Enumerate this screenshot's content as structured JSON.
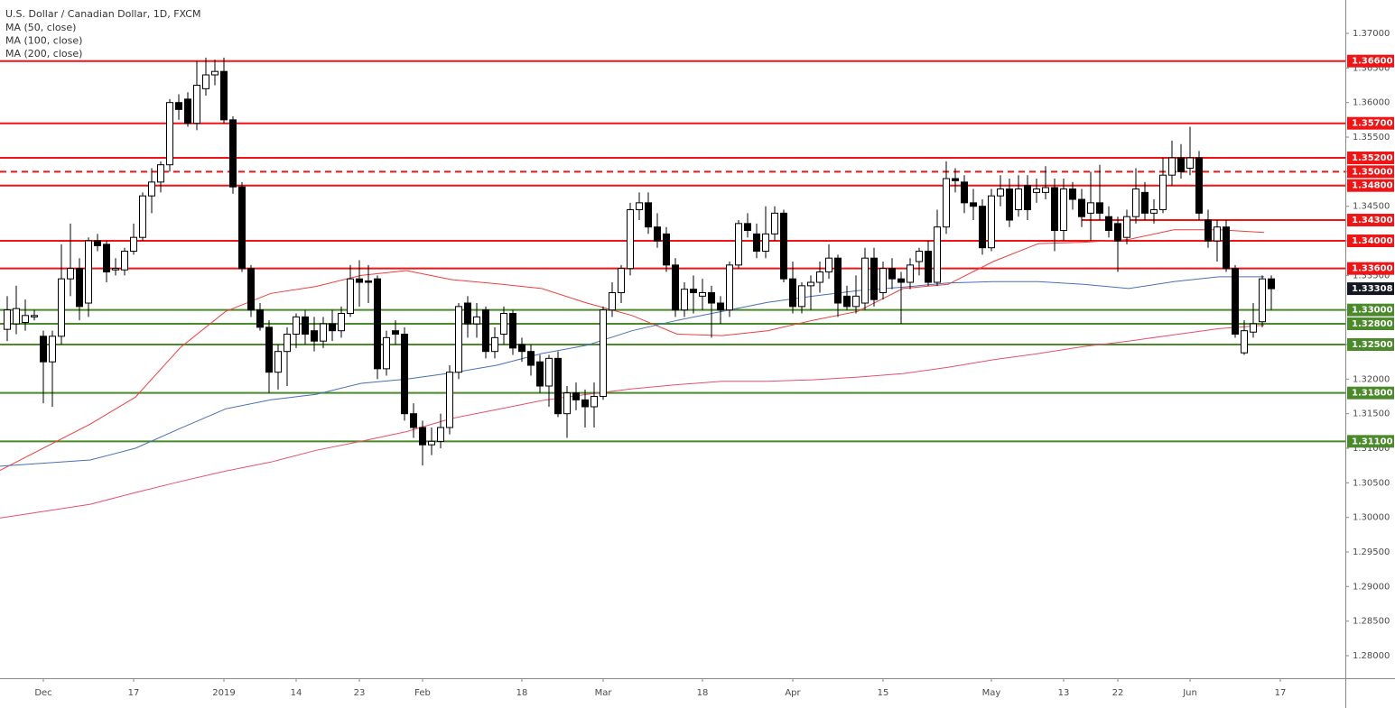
{
  "chart_data": {
    "type": "candlestick",
    "title": "U.S. Dollar / Canadian Dollar, 1D, FXCM",
    "up_color": "#ffffff",
    "down_color": "#000000",
    "xlim": [
      -4.8,
      144.2
    ],
    "ylim": [
      1.27674,
      1.37483
    ],
    "xticks": [
      {
        "value": 0,
        "label": "Dec"
      },
      {
        "value": 10,
        "label": "17"
      },
      {
        "value": 20,
        "label": "2019"
      },
      {
        "value": 28,
        "label": "14"
      },
      {
        "value": 35,
        "label": "23"
      },
      {
        "value": 42,
        "label": "Feb"
      },
      {
        "value": 53,
        "label": "18"
      },
      {
        "value": 62,
        "label": "Mar"
      },
      {
        "value": 73,
        "label": "18"
      },
      {
        "value": 83,
        "label": "Apr"
      },
      {
        "value": 93,
        "label": "15"
      },
      {
        "value": 105,
        "label": "May"
      },
      {
        "value": 113,
        "label": "13"
      },
      {
        "value": 119,
        "label": "22"
      },
      {
        "value": 127,
        "label": "Jun"
      },
      {
        "value": 137,
        "label": "17"
      }
    ],
    "yticks": [
      {
        "value": 1.28,
        "label": "1.28000"
      },
      {
        "value": 1.285,
        "label": "1.28500"
      },
      {
        "value": 1.29,
        "label": "1.29000"
      },
      {
        "value": 1.295,
        "label": "1.29500"
      },
      {
        "value": 1.3,
        "label": "1.30000"
      },
      {
        "value": 1.305,
        "label": "1.30500"
      },
      {
        "value": 1.31,
        "label": "1.31000"
      },
      {
        "value": 1.315,
        "label": "1.31500"
      },
      {
        "value": 1.32,
        "label": "1.32000"
      },
      {
        "value": 1.325,
        "label": "1.32500"
      },
      {
        "value": 1.33,
        "label": "1.33000"
      },
      {
        "value": 1.335,
        "label": "1.33500"
      },
      {
        "value": 1.34,
        "label": "1.34000"
      },
      {
        "value": 1.345,
        "label": "1.34500"
      },
      {
        "value": 1.35,
        "label": "1.35000"
      },
      {
        "value": 1.355,
        "label": "1.35500"
      },
      {
        "value": 1.36,
        "label": "1.36000"
      },
      {
        "value": 1.365,
        "label": "1.36500"
      },
      {
        "value": 1.37,
        "label": "1.37000"
      }
    ],
    "candles": {
      "x": [
        -4,
        -3,
        -2,
        -1,
        0,
        1,
        2,
        3,
        4,
        5,
        6,
        7,
        8,
        9,
        10,
        11,
        12,
        13,
        14,
        15,
        16,
        17,
        18,
        19,
        20,
        21,
        22,
        23,
        24,
        25,
        26,
        27,
        28,
        29,
        30,
        31,
        32,
        33,
        34,
        35,
        36,
        37,
        38,
        39,
        40,
        41,
        42,
        43,
        44,
        45,
        46,
        47,
        48,
        49,
        50,
        51,
        52,
        53,
        54,
        55,
        56,
        57,
        58,
        59,
        60,
        61,
        62,
        63,
        64,
        65,
        66,
        67,
        68,
        69,
        70,
        71,
        72,
        73,
        74,
        75,
        76,
        77,
        78,
        79,
        80,
        81,
        82,
        83,
        84,
        85,
        86,
        87,
        88,
        89,
        90,
        91,
        92,
        93,
        94,
        95,
        96,
        97,
        98,
        99,
        100,
        101,
        102,
        103,
        104,
        105,
        106,
        107,
        108,
        109,
        110,
        111,
        112,
        113,
        114,
        115,
        116,
        117,
        118,
        119,
        120,
        121,
        122,
        123,
        124,
        125,
        126,
        127,
        128,
        129,
        130,
        131,
        132,
        133,
        134,
        135,
        136
      ],
      "open": [
        1.3272,
        1.328,
        1.3282,
        1.329,
        1.3262,
        1.3225,
        1.3262,
        1.3345,
        1.336,
        1.331,
        1.34,
        1.3395,
        1.3358,
        1.3358,
        1.3385,
        1.3405,
        1.3465,
        1.3485,
        1.351,
        1.36,
        1.3605,
        1.357,
        1.362,
        1.364,
        1.3645,
        1.3575,
        1.3478,
        1.336,
        1.33,
        1.3275,
        1.321,
        1.324,
        1.3265,
        1.329,
        1.327,
        1.3255,
        1.328,
        1.327,
        1.3295,
        1.3345,
        1.3342,
        1.3345,
        1.3215,
        1.327,
        1.3265,
        1.315,
        1.313,
        1.3105,
        1.311,
        1.313,
        1.321,
        1.331,
        1.328,
        1.33,
        1.324,
        1.3265,
        1.3295,
        1.325,
        1.324,
        1.3225,
        1.319,
        1.323,
        1.315,
        1.318,
        1.317,
        1.316,
        1.3175,
        1.33,
        1.3325,
        1.336,
        1.3445,
        1.3455,
        1.342,
        1.341,
        1.3365,
        1.33,
        1.333,
        1.332,
        1.3325,
        1.331,
        1.33,
        1.3365,
        1.3425,
        1.341,
        1.3385,
        1.341,
        1.344,
        1.3345,
        1.3305,
        1.3335,
        1.334,
        1.3355,
        1.3375,
        1.332,
        1.3305,
        1.331,
        1.3375,
        1.3325,
        1.336,
        1.3345,
        1.334,
        1.337,
        1.3385,
        1.334,
        1.342,
        1.349,
        1.3485,
        1.3455,
        1.345,
        1.339,
        1.3465,
        1.3475,
        1.3445,
        1.348,
        1.347,
        1.347,
        1.3477,
        1.3415,
        1.3475,
        1.346,
        1.344,
        1.3455,
        1.3435,
        1.3425,
        1.3405,
        1.3435,
        1.347,
        1.344,
        1.3445,
        1.3495,
        1.352,
        1.3505,
        1.352,
        1.343,
        1.34,
        1.342,
        1.336,
        1.3238,
        1.3268,
        1.3283,
        1.3345
      ],
      "high": [
        1.332,
        1.3335,
        1.3315,
        1.33,
        1.327,
        1.327,
        1.3395,
        1.3425,
        1.3375,
        1.3405,
        1.341,
        1.34,
        1.3375,
        1.339,
        1.3425,
        1.347,
        1.3505,
        1.3515,
        1.3605,
        1.3612,
        1.3615,
        1.366,
        1.3665,
        1.3662,
        1.3665,
        1.358,
        1.3485,
        1.3365,
        1.331,
        1.3285,
        1.325,
        1.3275,
        1.3295,
        1.33,
        1.329,
        1.329,
        1.33,
        1.3305,
        1.3365,
        1.3372,
        1.3365,
        1.335,
        1.327,
        1.3285,
        1.3275,
        1.3165,
        1.314,
        1.313,
        1.315,
        1.322,
        1.331,
        1.332,
        1.331,
        1.3305,
        1.3275,
        1.3305,
        1.33,
        1.326,
        1.325,
        1.3235,
        1.3235,
        1.324,
        1.319,
        1.3195,
        1.3185,
        1.3195,
        1.3305,
        1.334,
        1.3365,
        1.3455,
        1.347,
        1.347,
        1.344,
        1.342,
        1.3375,
        1.334,
        1.335,
        1.3345,
        1.3335,
        1.332,
        1.337,
        1.343,
        1.344,
        1.3425,
        1.345,
        1.345,
        1.3445,
        1.337,
        1.334,
        1.335,
        1.337,
        1.3395,
        1.338,
        1.3335,
        1.335,
        1.339,
        1.339,
        1.337,
        1.3375,
        1.3355,
        1.3375,
        1.339,
        1.34,
        1.3445,
        1.3515,
        1.3505,
        1.3495,
        1.3475,
        1.346,
        1.3475,
        1.3495,
        1.349,
        1.3495,
        1.3495,
        1.349,
        1.3508,
        1.349,
        1.349,
        1.3485,
        1.3475,
        1.35,
        1.351,
        1.345,
        1.3435,
        1.3445,
        1.3505,
        1.3485,
        1.346,
        1.352,
        1.3545,
        1.354,
        1.3565,
        1.353,
        1.3445,
        1.343,
        1.343,
        1.3365,
        1.3285,
        1.331,
        1.335,
        1.335
      ],
      "low": [
        1.3255,
        1.3265,
        1.327,
        1.3285,
        1.3165,
        1.316,
        1.325,
        1.332,
        1.3285,
        1.329,
        1.3385,
        1.334,
        1.335,
        1.335,
        1.338,
        1.34,
        1.344,
        1.347,
        1.35,
        1.3575,
        1.3565,
        1.356,
        1.361,
        1.3625,
        1.357,
        1.3468,
        1.3355,
        1.329,
        1.327,
        1.318,
        1.3185,
        1.319,
        1.3245,
        1.325,
        1.324,
        1.3245,
        1.3255,
        1.326,
        1.329,
        1.3305,
        1.331,
        1.32,
        1.3205,
        1.325,
        1.314,
        1.3115,
        1.3075,
        1.309,
        1.31,
        1.312,
        1.32,
        1.326,
        1.326,
        1.323,
        1.323,
        1.325,
        1.3235,
        1.3225,
        1.3205,
        1.318,
        1.316,
        1.3145,
        1.3115,
        1.3155,
        1.313,
        1.313,
        1.317,
        1.329,
        1.331,
        1.335,
        1.343,
        1.341,
        1.339,
        1.3355,
        1.329,
        1.329,
        1.3295,
        1.33,
        1.326,
        1.328,
        1.329,
        1.336,
        1.3405,
        1.3375,
        1.3375,
        1.34,
        1.334,
        1.3295,
        1.3295,
        1.33,
        1.3325,
        1.3345,
        1.329,
        1.33,
        1.3295,
        1.33,
        1.3305,
        1.3315,
        1.333,
        1.328,
        1.333,
        1.335,
        1.3335,
        1.3335,
        1.341,
        1.347,
        1.344,
        1.343,
        1.338,
        1.3385,
        1.345,
        1.342,
        1.3435,
        1.343,
        1.3455,
        1.346,
        1.3385,
        1.34,
        1.3445,
        1.342,
        1.34,
        1.343,
        1.3405,
        1.3355,
        1.3395,
        1.3425,
        1.343,
        1.3425,
        1.344,
        1.348,
        1.349,
        1.3495,
        1.343,
        1.339,
        1.337,
        1.3355,
        1.326,
        1.3235,
        1.326,
        1.3275,
        1.33
      ],
      "close": [
        1.33,
        1.3302,
        1.3292,
        1.3292,
        1.3225,
        1.3262,
        1.3345,
        1.336,
        1.3305,
        1.34,
        1.3393,
        1.3355,
        1.336,
        1.3385,
        1.3405,
        1.3465,
        1.3485,
        1.351,
        1.36,
        1.359,
        1.357,
        1.3625,
        1.364,
        1.3645,
        1.3575,
        1.3478,
        1.336,
        1.33,
        1.3275,
        1.321,
        1.324,
        1.3265,
        1.329,
        1.3265,
        1.3255,
        1.328,
        1.327,
        1.3295,
        1.3345,
        1.334,
        1.334,
        1.3215,
        1.326,
        1.3265,
        1.315,
        1.313,
        1.3105,
        1.311,
        1.313,
        1.321,
        1.3305,
        1.328,
        1.329,
        1.324,
        1.326,
        1.3295,
        1.3245,
        1.324,
        1.322,
        1.319,
        1.323,
        1.315,
        1.318,
        1.317,
        1.316,
        1.3175,
        1.33,
        1.3325,
        1.336,
        1.3445,
        1.3455,
        1.342,
        1.34,
        1.3365,
        1.33,
        1.333,
        1.3325,
        1.3325,
        1.331,
        1.33,
        1.3365,
        1.3425,
        1.3415,
        1.3385,
        1.341,
        1.344,
        1.3345,
        1.3305,
        1.3335,
        1.334,
        1.3355,
        1.3375,
        1.331,
        1.3305,
        1.332,
        1.3375,
        1.3315,
        1.336,
        1.3345,
        1.334,
        1.3365,
        1.3385,
        1.334,
        1.342,
        1.349,
        1.3487,
        1.3455,
        1.345,
        1.339,
        1.3465,
        1.3475,
        1.343,
        1.3475,
        1.3445,
        1.3475,
        1.3477,
        1.3415,
        1.3475,
        1.346,
        1.3435,
        1.3455,
        1.344,
        1.3415,
        1.34,
        1.3435,
        1.3475,
        1.344,
        1.3445,
        1.3495,
        1.352,
        1.35,
        1.352,
        1.344,
        1.34,
        1.342,
        1.336,
        1.3265,
        1.327,
        1.328,
        1.3345,
        1.33308
      ]
    },
    "series": [
      {
        "name": "MA (50, close)",
        "color": "#f23c3c",
        "x": [
          -4.8,
          5.2,
          10.2,
          15.2,
          20.2,
          25.2,
          30.2,
          35.2,
          40.2,
          45.2,
          50.2,
          55.2,
          60.2,
          65.2,
          70.2,
          75.2,
          80.2,
          85.2,
          90.2,
          95.2,
          100.2,
          105.2,
          110.2,
          115.2,
          120.2,
          125.2,
          130.2,
          135.2
        ],
        "values": [
          1.3068,
          1.3135,
          1.3174,
          1.3246,
          1.3298,
          1.3324,
          1.3334,
          1.335,
          1.3357,
          1.3344,
          1.3338,
          1.3331,
          1.331,
          1.3292,
          1.3265,
          1.3263,
          1.327,
          1.3285,
          1.3298,
          1.3331,
          1.3337,
          1.337,
          1.3396,
          1.3398,
          1.3402,
          1.3416,
          1.3416,
          1.3412
        ]
      },
      {
        "name": "MA (100, close)",
        "color": "#4a6fb5",
        "x": [
          -4.8,
          5.2,
          10.2,
          15.2,
          20.2,
          25.2,
          30.2,
          35.2,
          40.2,
          45.2,
          50.2,
          55.2,
          60.2,
          65.2,
          70.2,
          75.2,
          80.2,
          85.2,
          90.2,
          95.2,
          100.2,
          105.2,
          110.2,
          115.2,
          120.2,
          125.2,
          130.2,
          135.2
        ],
        "values": [
          1.3074,
          1.3083,
          1.31,
          1.3129,
          1.3157,
          1.317,
          1.3178,
          1.3194,
          1.32,
          1.3209,
          1.322,
          1.3237,
          1.3249,
          1.327,
          1.3285,
          1.3298,
          1.3311,
          1.332,
          1.3328,
          1.3333,
          1.3339,
          1.3341,
          1.3341,
          1.3337,
          1.3331,
          1.3341,
          1.3348,
          1.3348
        ]
      },
      {
        "name": "MA (200, close)",
        "color": "#e8506e",
        "x": [
          -4.8,
          5.2,
          10.2,
          15.2,
          20.2,
          25.2,
          30.2,
          35.2,
          40.2,
          45.2,
          50.2,
          55.2,
          60.2,
          65.2,
          70.2,
          75.2,
          80.2,
          85.2,
          90.2,
          95.2,
          100.2,
          105.2,
          110.2,
          115.2,
          120.2,
          125.2,
          130.2,
          135.2
        ],
        "values": [
          1.2999,
          1.3019,
          1.3036,
          1.3052,
          1.3067,
          1.308,
          1.3097,
          1.311,
          1.3124,
          1.3143,
          1.3156,
          1.3169,
          1.3178,
          1.3186,
          1.3192,
          1.3197,
          1.3197,
          1.3199,
          1.3203,
          1.3208,
          1.3217,
          1.3228,
          1.3237,
          1.3247,
          1.3255,
          1.3264,
          1.3273,
          1.3278
        ]
      }
    ],
    "levels": [
      {
        "value": 1.366,
        "label": "1.36600",
        "color": "#f01414"
      },
      {
        "value": 1.357,
        "label": "1.35700",
        "color": "#f01414"
      },
      {
        "value": 1.352,
        "label": "1.35200",
        "color": "#f01414"
      },
      {
        "value": 1.35,
        "label": "1.35000",
        "color": "#f01414",
        "dashed": true
      },
      {
        "value": 1.348,
        "label": "1.34800",
        "color": "#f01414"
      },
      {
        "value": 1.343,
        "label": "1.34300",
        "color": "#f01414",
        "from_x": 115
      },
      {
        "value": 1.34,
        "label": "1.34000",
        "color": "#f01414"
      },
      {
        "value": 1.336,
        "label": "1.33600",
        "color": "#f01414"
      },
      {
        "value": 1.33,
        "label": "1.33000",
        "color": "#4b8a2b"
      },
      {
        "value": 1.328,
        "label": "1.32800",
        "color": "#4b8a2b"
      },
      {
        "value": 1.325,
        "label": "1.32500",
        "color": "#4b8a2b"
      },
      {
        "value": 1.318,
        "label": "1.31800",
        "color": "#4b8a2b"
      },
      {
        "value": 1.311,
        "label": "1.31100",
        "color": "#4b8a2b"
      }
    ],
    "last_price": {
      "value": 1.33308,
      "label": "1.33308",
      "color": "#131722"
    }
  }
}
